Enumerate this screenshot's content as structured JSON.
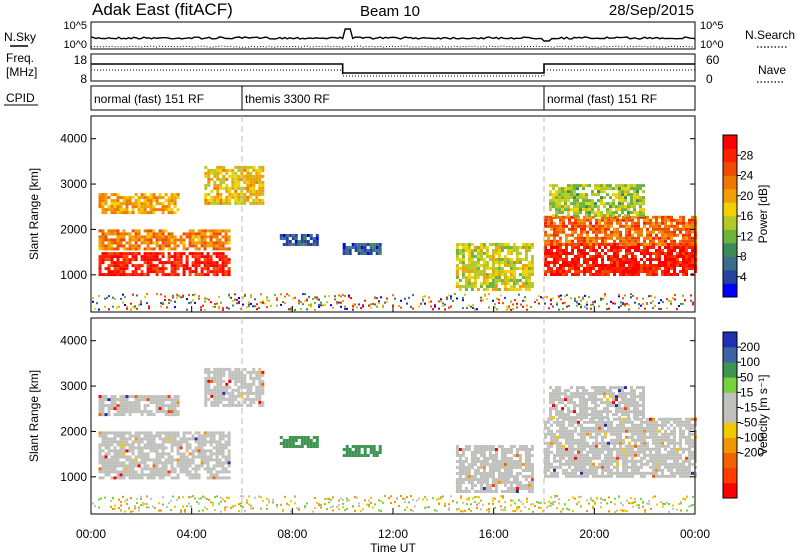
{
  "header": {
    "title": "Adak East (fitACF)",
    "beam": "Beam 10",
    "date": "28/Sep/2015"
  },
  "nsky_panel": {
    "left_label": "N.Sky",
    "left_ticks": [
      "10^5",
      "10^0"
    ],
    "right_ticks": [
      "10^5",
      "10^0"
    ],
    "right_label": "N.Search"
  },
  "freq_panel": {
    "left_label_line1": "Freq.",
    "left_label_line2": "[MHz]",
    "left_ticks": [
      "18",
      "8"
    ],
    "right_ticks": [
      "60",
      "0"
    ],
    "right_label": "Nave"
  },
  "cpid_panel": {
    "label": "CPID",
    "modes": [
      "normal (fast) 151 RF",
      "themis 3300 RF",
      "normal (fast) 151 RF"
    ],
    "mode_bounds_hours": [
      0,
      6,
      18,
      24
    ]
  },
  "time_axis": {
    "label": "Time UT",
    "ticks": [
      "00:00",
      "04:00",
      "08:00",
      "12:00",
      "16:00",
      "20:00",
      "00:00"
    ]
  },
  "colors": {
    "power": [
      "#0000ff",
      "#2840a0",
      "#3c6e8c",
      "#3c8c5a",
      "#6cb43c",
      "#b4c828",
      "#f0d200",
      "#f0a000",
      "#f07800",
      "#f04b00",
      "#ff2000",
      "#ff0000"
    ],
    "velocity": [
      "#2030b0",
      "#3c64a0",
      "#3c9650",
      "#78d23c",
      "#c0c0bc",
      "#c0c0bc",
      "#f0c800",
      "#f09600",
      "#f06400",
      "#ff3c00",
      "#ff0000"
    ],
    "ground_scatter": "#c0c0bc"
  },
  "chart_data": [
    {
      "type": "heatmap",
      "name": "Power",
      "xlabel": "",
      "ylabel": "Slant Range [km]",
      "xlim": [
        0,
        24
      ],
      "ylim": [
        180,
        4500
      ],
      "yticks": [
        1000,
        2000,
        3000,
        4000
      ],
      "ytick_labels": [
        "1000",
        "2000",
        "3000",
        "4000"
      ],
      "colorbar": {
        "label": "Power [dB]",
        "range": [
          0,
          32
        ],
        "ticks": [
          4,
          8,
          12,
          16,
          20,
          24,
          28
        ],
        "tick_labels": [
          "4",
          "8",
          "12",
          "16",
          "20",
          "24",
          "28"
        ]
      },
      "echo_regions": [
        {
          "t": [
            0.3,
            5.5
          ],
          "range_km": [
            1000,
            1500
          ],
          "power_db": 29
        },
        {
          "t": [
            0.3,
            5.5
          ],
          "range_km": [
            1550,
            2000
          ],
          "power_db": 22
        },
        {
          "t": [
            0.3,
            3.5
          ],
          "range_km": [
            2400,
            2800
          ],
          "power_db": 20
        },
        {
          "t": [
            4.5,
            6.8
          ],
          "range_km": [
            2600,
            3400
          ],
          "power_db": 18
        },
        {
          "t": [
            7.5,
            9.0
          ],
          "range_km": [
            1700,
            1900
          ],
          "power_db": 6
        },
        {
          "t": [
            10.0,
            11.5
          ],
          "range_km": [
            1500,
            1700
          ],
          "power_db": 6
        },
        {
          "t": [
            14.5,
            17.5
          ],
          "range_km": [
            700,
            1700
          ],
          "power_db": 16
        },
        {
          "t": [
            18.0,
            24.0
          ],
          "range_km": [
            1000,
            1700
          ],
          "power_db": 29
        },
        {
          "t": [
            18.0,
            24.0
          ],
          "range_km": [
            1700,
            2300
          ],
          "power_db": 24
        },
        {
          "t": [
            18.2,
            22.0
          ],
          "range_km": [
            2300,
            3000
          ],
          "power_db": 14
        }
      ]
    },
    {
      "type": "heatmap",
      "name": "Velocity",
      "xlabel": "Time UT",
      "ylabel": "Slant Range [km]",
      "xlim": [
        0,
        24
      ],
      "ylim": [
        180,
        4500
      ],
      "yticks": [
        1000,
        2000,
        3000,
        4000
      ],
      "ytick_labels": [
        "1000",
        "2000",
        "3000",
        "4000"
      ],
      "colorbar": {
        "label": "Velocity [m s⁻¹]",
        "ticks": [
          200,
          100,
          50,
          15,
          -15,
          -50,
          -100,
          -200
        ],
        "tick_labels": [
          "200",
          "100",
          "50",
          "15",
          "-15",
          "-50",
          "-100",
          "-200"
        ]
      },
      "echo_regions": [
        {
          "t": [
            0.3,
            5.5
          ],
          "range_km": [
            1000,
            2000
          ],
          "velocity": 0
        },
        {
          "t": [
            0.3,
            3.5
          ],
          "range_km": [
            2400,
            2800
          ],
          "velocity": 0
        },
        {
          "t": [
            4.5,
            6.8
          ],
          "range_km": [
            2600,
            3400
          ],
          "velocity": 0
        },
        {
          "t": [
            7.5,
            9.0
          ],
          "range_km": [
            1700,
            1900
          ],
          "velocity": 60
        },
        {
          "t": [
            10.0,
            11.5
          ],
          "range_km": [
            1500,
            1700
          ],
          "velocity": 60
        },
        {
          "t": [
            14.5,
            17.5
          ],
          "range_km": [
            700,
            1700
          ],
          "velocity": 0
        },
        {
          "t": [
            18.0,
            24.0
          ],
          "range_km": [
            1000,
            2300
          ],
          "velocity": 0
        },
        {
          "t": [
            18.2,
            22.0
          ],
          "range_km": [
            2300,
            3000
          ],
          "velocity": 0
        }
      ]
    }
  ]
}
